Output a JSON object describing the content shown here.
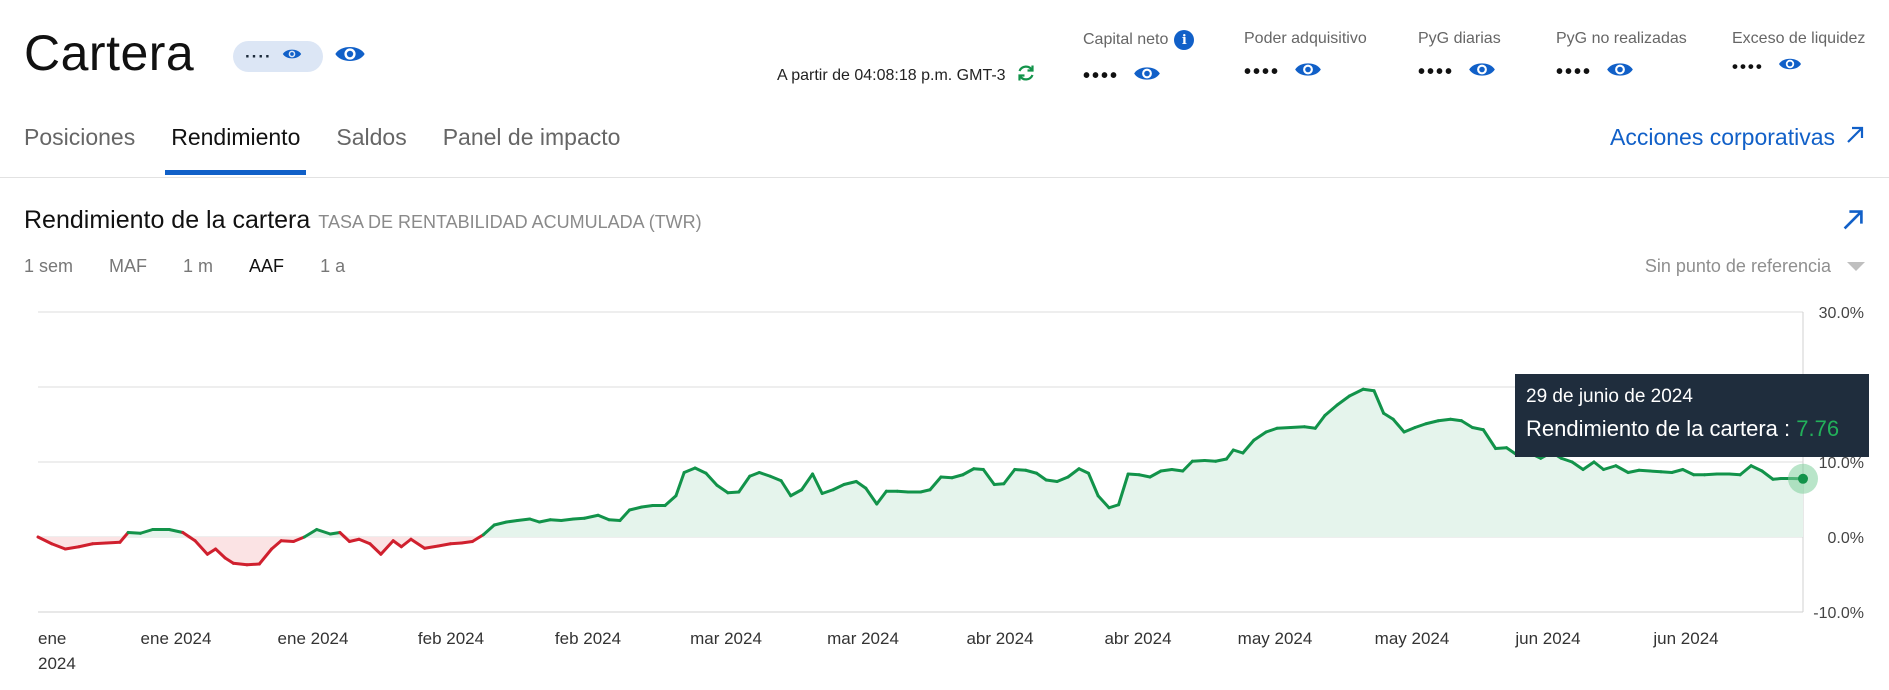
{
  "app": {
    "title": "Cartera",
    "masked": "····"
  },
  "timestamp": "A partir de 04:08:18 p.m. GMT-3",
  "metrics": [
    {
      "label": "Capital neto",
      "value": "••••",
      "info": true
    },
    {
      "label": "Poder adquisitivo",
      "value": "••••"
    },
    {
      "label": "PyG diarias",
      "value": "••••"
    },
    {
      "label": "PyG no realizadas",
      "value": "••••"
    },
    {
      "label": "Exceso de liquidez",
      "value": "••••"
    }
  ],
  "tabs": [
    "Posiciones",
    "Rendimiento",
    "Saldos",
    "Panel de impacto"
  ],
  "active_tab": "Rendimiento",
  "corp_actions": "Acciones corporativas",
  "section": {
    "title": "Rendimiento de la cartera",
    "subtitle": "TASA DE RENTABILIDAD ACUMULADA (TWR)"
  },
  "ranges": [
    "1 sem",
    "MAF",
    "1 m",
    "AAF",
    "1 a"
  ],
  "active_range": "AAF",
  "benchmark": "Sin punto de referencia",
  "tooltip": {
    "date": "29 de junio de 2024",
    "label": "Rendimiento de la cartera : ",
    "value": "7.76"
  },
  "colors": {
    "accent": "#1160c8",
    "positive": "#12934a",
    "negative": "#d0202e",
    "positive_fill": "#e5f4ec",
    "negative_fill": "#fbe3e4",
    "tooltip_bg": "#1f2d3d"
  },
  "chart_data": {
    "type": "line",
    "y_ticks": [
      "30.0%",
      "20.0%",
      "10.0%",
      "0.0%",
      "-10.0%"
    ],
    "ylim": [
      -10,
      30
    ],
    "x_tick_labels": [
      "ene 2024",
      "ene 2024",
      "ene 2024",
      "feb 2024",
      "feb 2024",
      "mar 2024",
      "mar 2024",
      "abr 2024",
      "abr 2024",
      "may 2024",
      "may 2024",
      "jun 2024",
      "jun 2024"
    ],
    "series": [
      {
        "values": [
          [
            0.0,
            0.0
          ],
          [
            1.0,
            -0.9
          ],
          [
            2.0,
            -1.6
          ],
          [
            3.0,
            -1.3
          ],
          [
            4.0,
            -0.9
          ],
          [
            5.0,
            -0.8
          ],
          [
            6.0,
            -0.7
          ],
          [
            6.6,
            0.6
          ],
          [
            7.5,
            0.5
          ],
          [
            8.4,
            1.0
          ],
          [
            9.6,
            1.0
          ],
          [
            10.6,
            0.6
          ],
          [
            11.5,
            -0.5
          ],
          [
            12.4,
            -2.3
          ],
          [
            13.0,
            -1.6
          ],
          [
            13.7,
            -2.8
          ],
          [
            14.3,
            -3.5
          ],
          [
            15.3,
            -3.7
          ],
          [
            16.2,
            -3.6
          ],
          [
            17.1,
            -1.6
          ],
          [
            17.8,
            -0.5
          ],
          [
            18.7,
            -0.6
          ],
          [
            19.5,
            0.0
          ],
          [
            20.4,
            1.0
          ],
          [
            21.4,
            0.4
          ],
          [
            22.1,
            0.6
          ],
          [
            22.8,
            -0.6
          ],
          [
            23.5,
            -0.3
          ],
          [
            24.3,
            -0.9
          ],
          [
            25.1,
            -2.3
          ],
          [
            26.0,
            -0.5
          ],
          [
            26.6,
            -1.3
          ],
          [
            27.3,
            -0.3
          ],
          [
            28.3,
            -1.5
          ],
          [
            29.3,
            -1.2
          ],
          [
            30.2,
            -0.9
          ],
          [
            31.0,
            -0.8
          ],
          [
            31.8,
            -0.6
          ],
          [
            32.6,
            0.3
          ],
          [
            33.4,
            1.6
          ],
          [
            34.3,
            2.0
          ],
          [
            35.1,
            2.2
          ],
          [
            36.0,
            2.4
          ],
          [
            36.7,
            2.0
          ],
          [
            37.5,
            2.3
          ],
          [
            38.3,
            2.2
          ],
          [
            39.2,
            2.4
          ],
          [
            40.0,
            2.5
          ],
          [
            41.0,
            2.9
          ],
          [
            41.8,
            2.3
          ],
          [
            42.6,
            2.2
          ],
          [
            43.3,
            3.6
          ],
          [
            44.2,
            4.0
          ],
          [
            45.0,
            4.2
          ],
          [
            45.9,
            4.2
          ],
          [
            46.7,
            5.5
          ],
          [
            47.3,
            8.6
          ],
          [
            48.1,
            9.2
          ],
          [
            48.9,
            8.5
          ],
          [
            49.7,
            6.9
          ],
          [
            50.5,
            5.9
          ],
          [
            51.3,
            6.0
          ],
          [
            52.1,
            8.1
          ],
          [
            52.8,
            8.6
          ],
          [
            53.6,
            8.1
          ],
          [
            54.4,
            7.5
          ],
          [
            55.1,
            5.5
          ],
          [
            55.9,
            6.3
          ],
          [
            56.7,
            8.4
          ],
          [
            57.4,
            5.8
          ],
          [
            58.2,
            6.3
          ],
          [
            59.0,
            7.0
          ],
          [
            59.9,
            7.4
          ],
          [
            60.6,
            6.5
          ],
          [
            61.4,
            4.4
          ],
          [
            62.1,
            6.1
          ],
          [
            62.9,
            6.1
          ],
          [
            63.7,
            6.0
          ],
          [
            64.6,
            6.0
          ],
          [
            65.3,
            6.3
          ],
          [
            66.1,
            8.0
          ],
          [
            66.9,
            7.9
          ],
          [
            67.7,
            8.3
          ],
          [
            68.5,
            9.1
          ],
          [
            69.2,
            9.0
          ],
          [
            70.0,
            7.0
          ],
          [
            70.7,
            7.1
          ],
          [
            71.5,
            9.0
          ],
          [
            72.3,
            8.9
          ],
          [
            73.1,
            8.5
          ],
          [
            73.8,
            7.6
          ],
          [
            74.6,
            7.4
          ],
          [
            75.4,
            8.0
          ],
          [
            76.2,
            9.1
          ],
          [
            76.9,
            8.5
          ],
          [
            77.6,
            5.5
          ],
          [
            78.4,
            3.9
          ],
          [
            79.1,
            4.3
          ],
          [
            79.8,
            8.4
          ],
          [
            80.6,
            8.3
          ],
          [
            81.4,
            8.0
          ],
          [
            82.2,
            8.8
          ],
          [
            83.0,
            9.0
          ],
          [
            83.8,
            8.8
          ],
          [
            84.5,
            10.1
          ],
          [
            85.4,
            10.2
          ],
          [
            86.2,
            10.1
          ],
          [
            87.0,
            10.4
          ],
          [
            87.5,
            11.6
          ],
          [
            88.2,
            11.2
          ],
          [
            89.0,
            12.9
          ],
          [
            89.9,
            14.0
          ],
          [
            90.7,
            14.5
          ],
          [
            91.7,
            14.6
          ],
          [
            92.7,
            14.7
          ],
          [
            93.5,
            14.5
          ],
          [
            94.2,
            16.2
          ],
          [
            95.1,
            17.6
          ],
          [
            96.0,
            18.8
          ],
          [
            97.0,
            19.7
          ],
          [
            97.8,
            19.5
          ],
          [
            98.5,
            16.5
          ],
          [
            99.2,
            15.7
          ],
          [
            100.0,
            14.0
          ],
          [
            100.8,
            14.6
          ],
          [
            101.6,
            15.1
          ],
          [
            102.5,
            15.5
          ],
          [
            103.4,
            15.7
          ],
          [
            104.2,
            15.5
          ],
          [
            105.0,
            14.6
          ],
          [
            105.8,
            14.3
          ],
          [
            106.7,
            11.8
          ],
          [
            107.5,
            11.9
          ],
          [
            108.3,
            10.9
          ],
          [
            109.2,
            11.2
          ],
          [
            110.0,
            10.5
          ],
          [
            110.8,
            11.3
          ],
          [
            111.5,
            10.5
          ],
          [
            112.3,
            10.0
          ],
          [
            113.1,
            9.0
          ],
          [
            113.9,
            10.0
          ],
          [
            114.6,
            9.0
          ],
          [
            115.5,
            9.5
          ],
          [
            116.4,
            8.6
          ],
          [
            117.2,
            8.9
          ],
          [
            118.0,
            8.8
          ],
          [
            118.8,
            8.7
          ],
          [
            119.6,
            8.6
          ],
          [
            120.4,
            9.0
          ],
          [
            121.2,
            8.3
          ],
          [
            122.0,
            8.3
          ],
          [
            122.9,
            8.4
          ],
          [
            123.8,
            8.4
          ],
          [
            124.6,
            8.3
          ],
          [
            125.4,
            9.5
          ],
          [
            126.2,
            8.8
          ],
          [
            127.0,
            7.7
          ],
          [
            127.6,
            7.8
          ],
          [
            128.4,
            7.8
          ],
          [
            129.2,
            7.76
          ]
        ]
      }
    ],
    "x_range": [
      0,
      129.2
    ],
    "highlighted_point": {
      "x": 129.2,
      "y": 7.76
    }
  }
}
